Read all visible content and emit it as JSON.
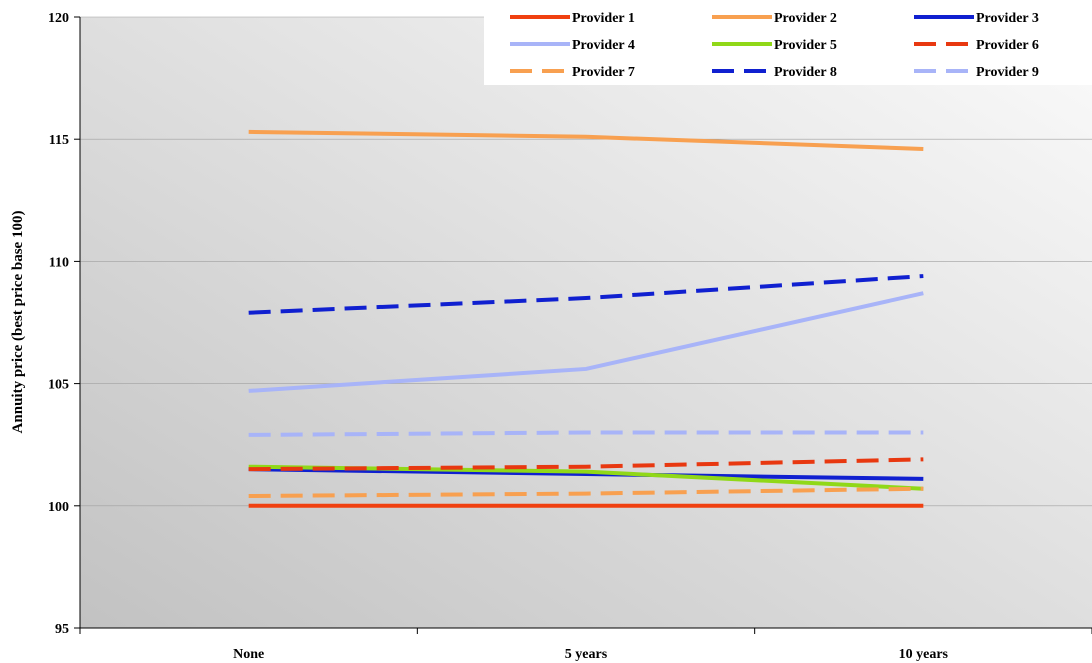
{
  "chart_data": {
    "type": "line",
    "title": "",
    "xlabel": "",
    "ylabel": "Annuity price (best price base 100)",
    "categories": [
      "None",
      "5 years",
      "10 years"
    ],
    "ylim": [
      95,
      120
    ],
    "yticks": [
      "95",
      "100",
      "105",
      "110",
      "115",
      "120"
    ],
    "grid": true,
    "legend_position": "top-right",
    "series": [
      {
        "name": "Provider 1",
        "values": [
          100.0,
          100.0,
          100.0
        ],
        "color": "#f04010",
        "dashed": false
      },
      {
        "name": "Provider 2",
        "values": [
          115.3,
          115.1,
          114.6
        ],
        "color": "#f8a050",
        "dashed": false
      },
      {
        "name": "Provider 3",
        "values": [
          101.5,
          101.3,
          101.1
        ],
        "color": "#1020d0",
        "dashed": false
      },
      {
        "name": "Provider 4",
        "values": [
          104.7,
          105.6,
          108.7
        ],
        "color": "#a8b4f8",
        "dashed": false
      },
      {
        "name": "Provider 5",
        "values": [
          101.6,
          101.4,
          100.7
        ],
        "color": "#90d818",
        "dashed": false
      },
      {
        "name": "Provider 6",
        "values": [
          101.5,
          101.6,
          101.9
        ],
        "color": "#e83810",
        "dashed": true
      },
      {
        "name": "Provider 7",
        "values": [
          100.4,
          100.5,
          100.7
        ],
        "color": "#f8a050",
        "dashed": true
      },
      {
        "name": "Provider 8",
        "values": [
          107.9,
          108.5,
          109.4
        ],
        "color": "#1020d0",
        "dashed": true
      },
      {
        "name": "Provider 9",
        "values": [
          102.9,
          103.0,
          103.0
        ],
        "color": "#a8b4f8",
        "dashed": true
      }
    ]
  }
}
